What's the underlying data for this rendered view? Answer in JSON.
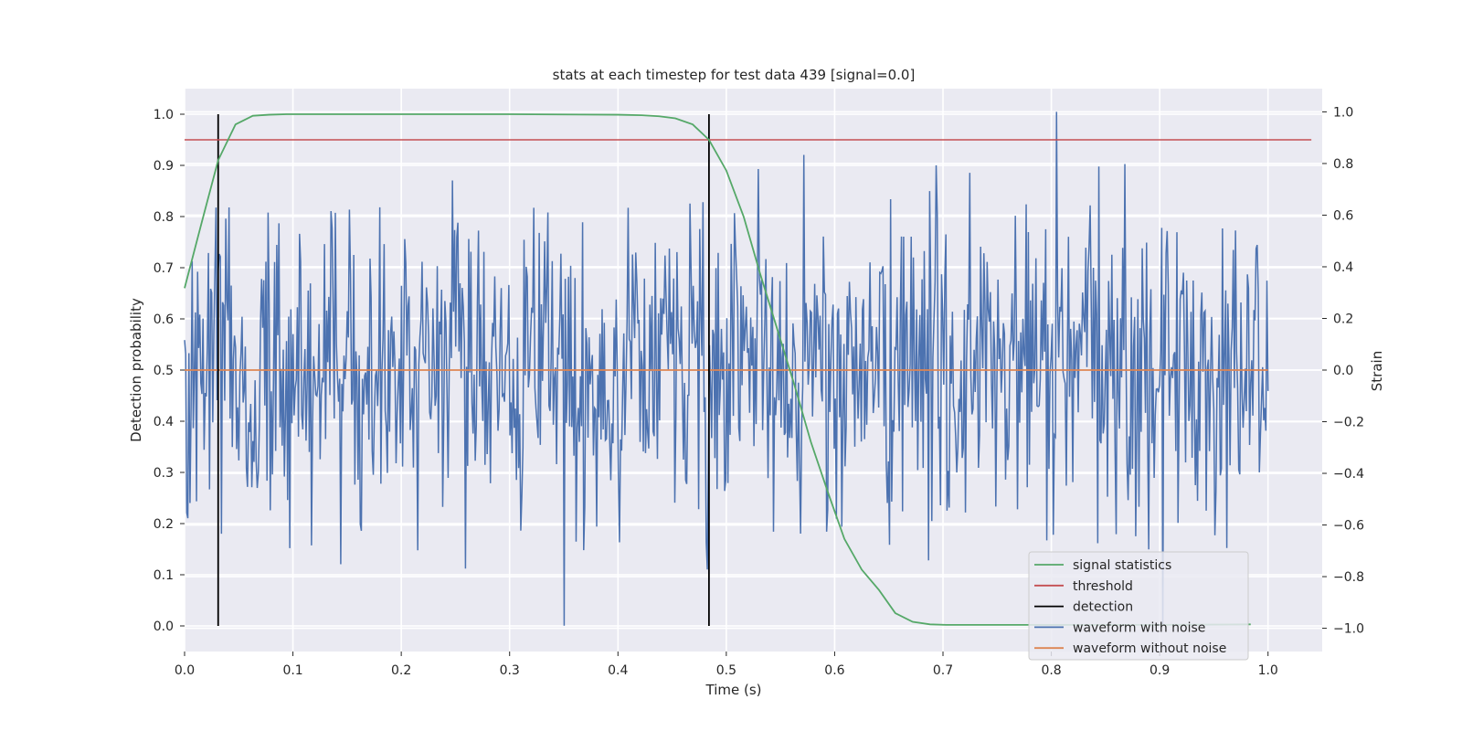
{
  "chart_data": {
    "type": "line",
    "title": "stats at each timestep for test data 439 [signal=0.0]",
    "xlabel": "Time (s)",
    "ylabel_left": "Detection probability",
    "ylabel_right": "Strain",
    "xlim": [
      0.0,
      1.05
    ],
    "ylim_left": [
      -0.05,
      1.05
    ],
    "ylim_right": [
      -1.09,
      1.09
    ],
    "x_ticks": [
      "0.0",
      "0.1",
      "0.2",
      "0.3",
      "0.4",
      "0.5",
      "0.6",
      "0.7",
      "0.8",
      "0.9",
      "1.0"
    ],
    "y_ticks_left": [
      "0.0",
      "0.1",
      "0.2",
      "0.3",
      "0.4",
      "0.5",
      "0.6",
      "0.7",
      "0.8",
      "0.9",
      "1.0"
    ],
    "y_ticks_right": [
      "−1.0",
      "−0.8",
      "−0.6",
      "−0.4",
      "−0.2",
      "0.0",
      "0.2",
      "0.4",
      "0.6",
      "0.8",
      "1.0"
    ],
    "grid": true,
    "background": "#eaeaf2",
    "legend_position": "lower-right",
    "series": [
      {
        "name": "signal statistics",
        "color": "#55a868",
        "axis": "left",
        "x": [
          0.0,
          0.016,
          0.031,
          0.047,
          0.063,
          0.078,
          0.094,
          0.2,
          0.3,
          0.4,
          0.422,
          0.438,
          0.453,
          0.469,
          0.484,
          0.5,
          0.516,
          0.531,
          0.547,
          0.563,
          0.578,
          0.594,
          0.609,
          0.625,
          0.641,
          0.656,
          0.672,
          0.688,
          0.703,
          0.75,
          0.8,
          0.9,
          0.984
        ],
        "y": [
          0.66,
          0.79,
          0.91,
          0.98,
          0.997,
          0.999,
          1.0,
          1.0,
          1.0,
          0.999,
          0.998,
          0.996,
          0.992,
          0.98,
          0.95,
          0.89,
          0.8,
          0.69,
          0.58,
          0.47,
          0.36,
          0.26,
          0.17,
          0.11,
          0.07,
          0.025,
          0.008,
          0.003,
          0.002,
          0.002,
          0.002,
          0.002,
          0.003
        ]
      },
      {
        "name": "threshold",
        "color": "#c44e52",
        "axis": "left",
        "x": [
          0.0,
          1.04
        ],
        "y": [
          0.95,
          0.95
        ]
      },
      {
        "name": "detection",
        "color": "#000000",
        "axis": "left",
        "x": [
          0.031,
          0.484
        ],
        "y_range": [
          0.0,
          1.0
        ]
      },
      {
        "name": "waveform with noise",
        "color": "#4c72b0",
        "axis": "right",
        "points": 1000,
        "y_range": [
          -0.99,
          1.0
        ],
        "note_peaks": "max 1.0 near x=0.805, min -0.99 near x=0.35"
      },
      {
        "name": "waveform without noise",
        "color": "#dd8452",
        "axis": "right",
        "x": [
          0.0,
          1.0
        ],
        "y": [
          0.0,
          0.0
        ]
      }
    ]
  }
}
